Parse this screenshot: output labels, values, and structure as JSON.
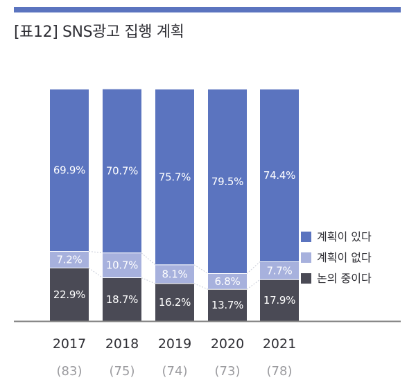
{
  "header": {
    "title": "[표12] SNS광고 집행 계획"
  },
  "chart_data": {
    "type": "bar",
    "stacked": true,
    "categories": [
      "2017",
      "2018",
      "2019",
      "2020",
      "2021"
    ],
    "category_sublabels": [
      "(83)",
      "(75)",
      "(74)",
      "(73)",
      "(78)"
    ],
    "series": [
      {
        "name": "논의 중이다",
        "values": [
          22.9,
          18.7,
          16.2,
          13.7,
          17.9
        ],
        "labels": [
          "22.9%",
          "18.7%",
          "16.2%",
          "13.7%",
          "17.9%"
        ]
      },
      {
        "name": "계획이 없다",
        "values": [
          7.2,
          10.7,
          8.1,
          6.8,
          7.7
        ],
        "labels": [
          "7.2%",
          "10.7%",
          "8.1%",
          "6.8%",
          "7.7%"
        ]
      },
      {
        "name": "계획이 있다",
        "values": [
          69.9,
          70.7,
          75.7,
          79.5,
          74.4
        ],
        "labels": [
          "69.9%",
          "70.7%",
          "75.7%",
          "79.5%",
          "74.4%"
        ]
      }
    ],
    "legend": [
      "계획이 있다",
      "계획이 없다",
      "논의 중이다"
    ],
    "legend_position": "right",
    "ylim": [
      0,
      100
    ],
    "grid": false,
    "colors": {
      "계획이 있다": "#5b74bf",
      "계획이 없다": "#a7b1dd",
      "논의 중이다": "#4a4a55",
      "baseline": "#7f7f7f",
      "connector": "#c8ccd8"
    }
  }
}
